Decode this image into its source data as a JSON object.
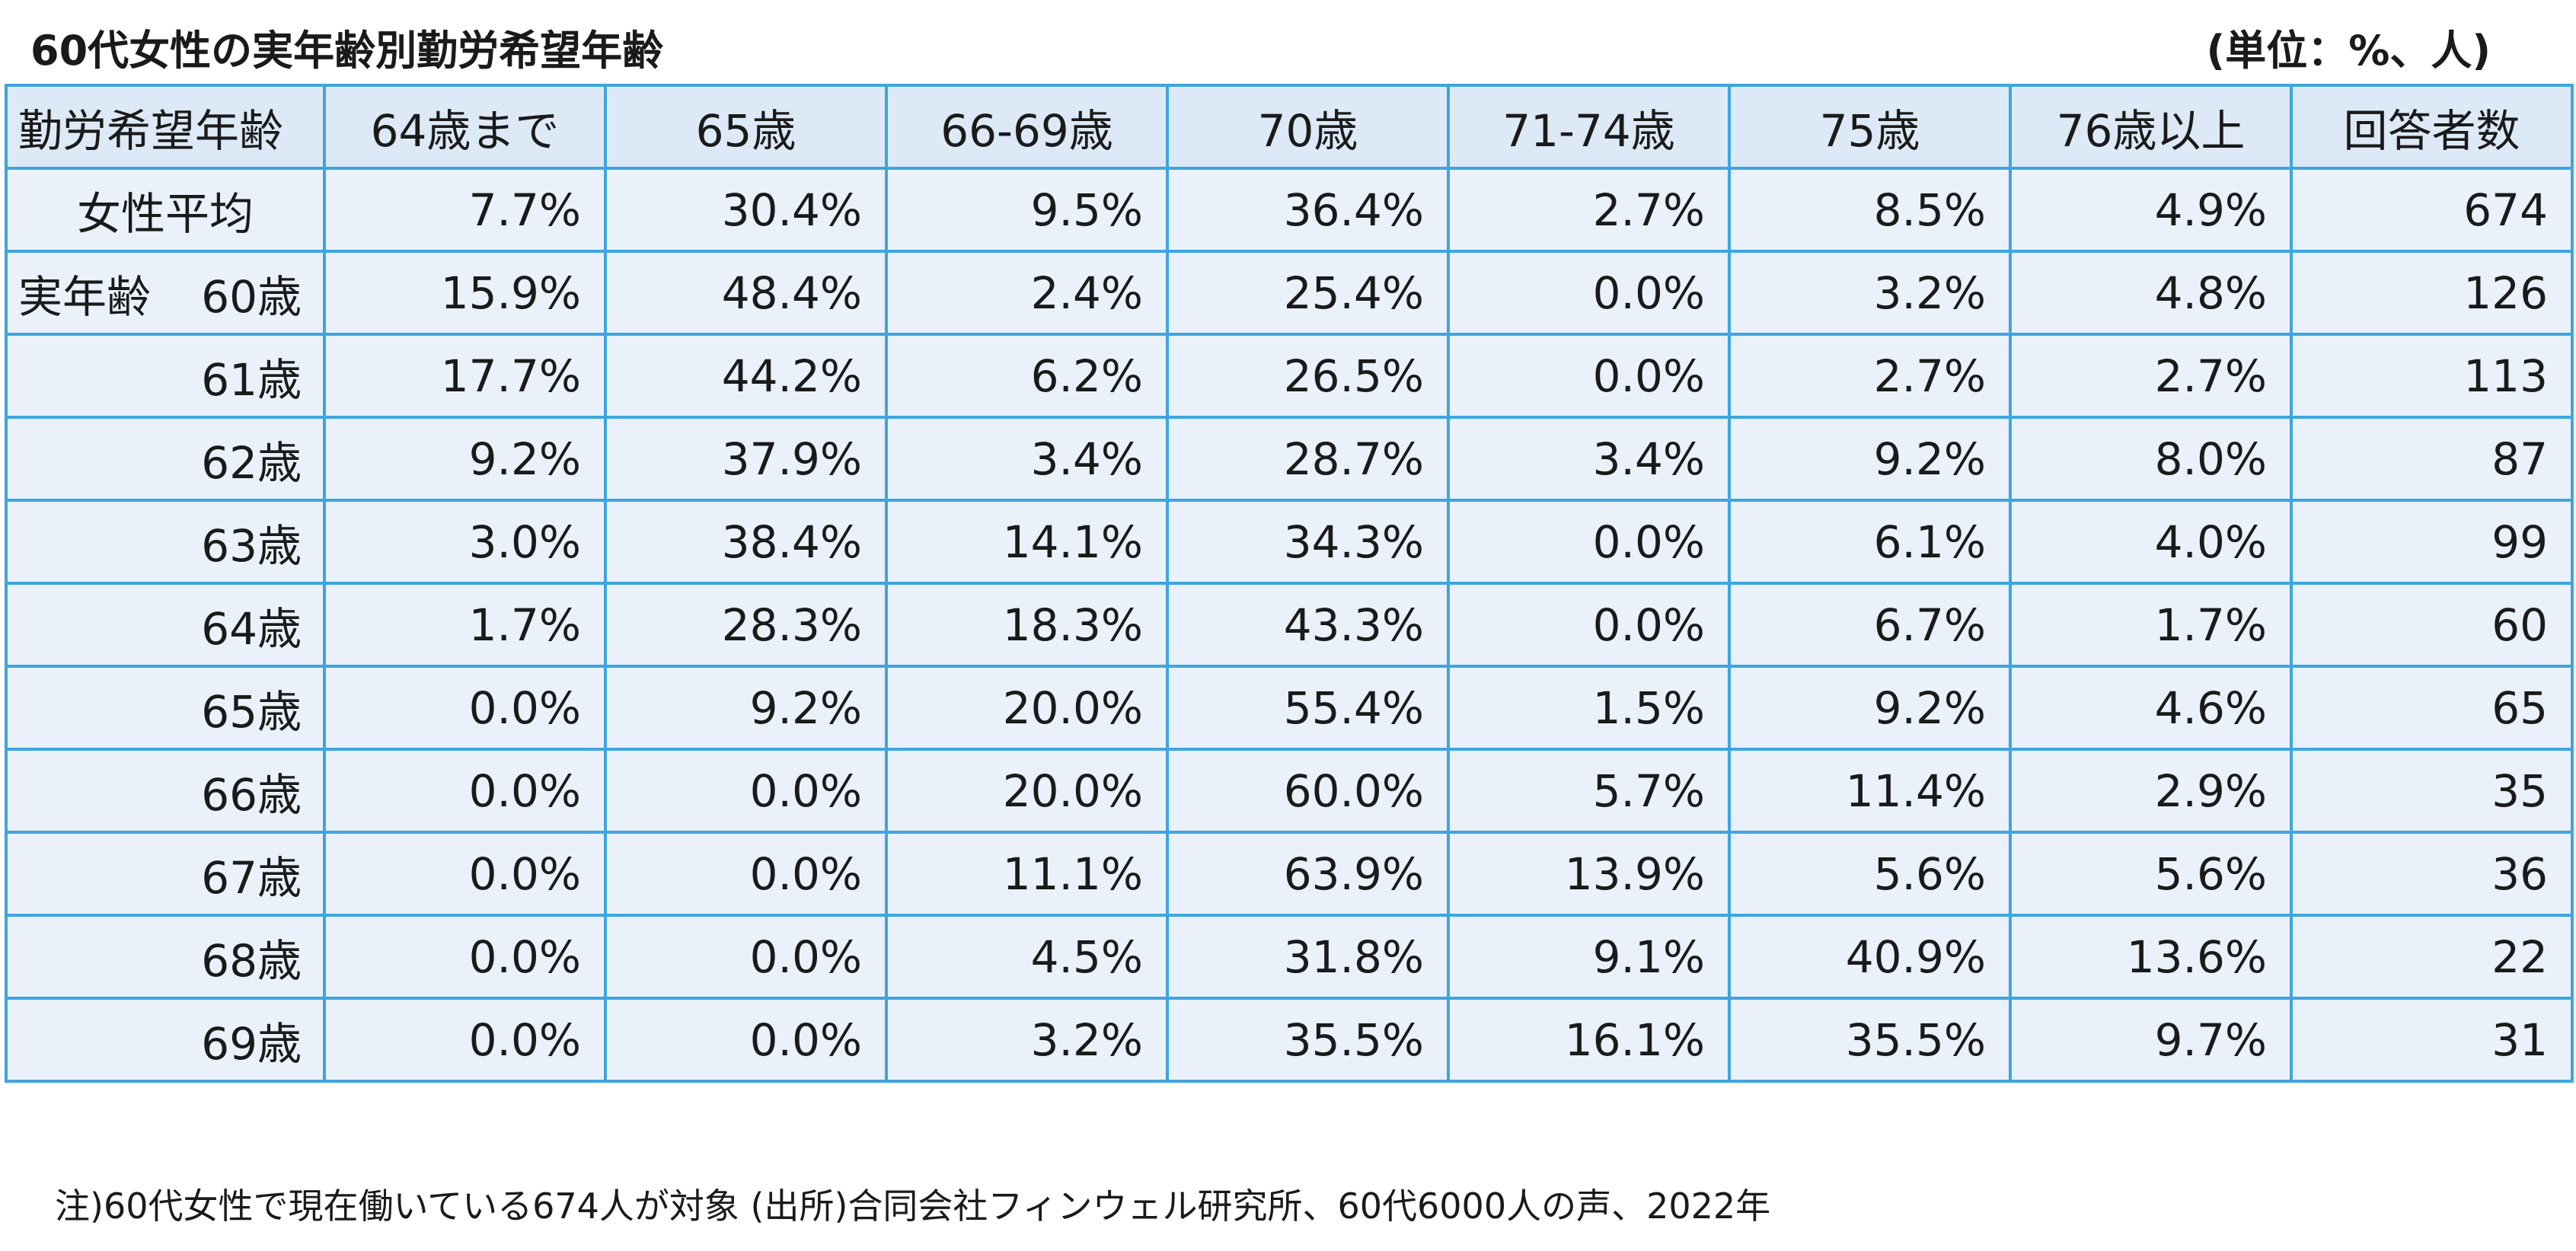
{
  "header": {
    "title": "60代女性の実年齢別勤労希望年齢",
    "unit": "(単位：%、人)"
  },
  "chart_data": {
    "type": "table",
    "title": "60代女性の実年齢別勤労希望年齢",
    "columns": [
      "勤労希望年齢",
      "64歳まで",
      "65歳",
      "66‑69歳",
      "70歳",
      "71‑74歳",
      "75歳",
      "76歳以上",
      "回答者数"
    ],
    "row_group_label": "実年齢",
    "rows": [
      {
        "label": "女性平均",
        "values": [
          "7.7%",
          "30.4%",
          "9.5%",
          "36.4%",
          "2.7%",
          "8.5%",
          "4.9%",
          "674"
        ]
      },
      {
        "label": "60歳",
        "values": [
          "15.9%",
          "48.4%",
          "2.4%",
          "25.4%",
          "0.0%",
          "3.2%",
          "4.8%",
          "126"
        ]
      },
      {
        "label": "61歳",
        "values": [
          "17.7%",
          "44.2%",
          "6.2%",
          "26.5%",
          "0.0%",
          "2.7%",
          "2.7%",
          "113"
        ]
      },
      {
        "label": "62歳",
        "values": [
          "9.2%",
          "37.9%",
          "3.4%",
          "28.7%",
          "3.4%",
          "9.2%",
          "8.0%",
          "87"
        ]
      },
      {
        "label": "63歳",
        "values": [
          "3.0%",
          "38.4%",
          "14.1%",
          "34.3%",
          "0.0%",
          "6.1%",
          "4.0%",
          "99"
        ]
      },
      {
        "label": "64歳",
        "values": [
          "1.7%",
          "28.3%",
          "18.3%",
          "43.3%",
          "0.0%",
          "6.7%",
          "1.7%",
          "60"
        ]
      },
      {
        "label": "65歳",
        "values": [
          "0.0%",
          "9.2%",
          "20.0%",
          "55.4%",
          "1.5%",
          "9.2%",
          "4.6%",
          "65"
        ]
      },
      {
        "label": "66歳",
        "values": [
          "0.0%",
          "0.0%",
          "20.0%",
          "60.0%",
          "5.7%",
          "11.4%",
          "2.9%",
          "35"
        ]
      },
      {
        "label": "67歳",
        "values": [
          "0.0%",
          "0.0%",
          "11.1%",
          "63.9%",
          "13.9%",
          "5.6%",
          "5.6%",
          "36"
        ]
      },
      {
        "label": "68歳",
        "values": [
          "0.0%",
          "0.0%",
          "4.5%",
          "31.8%",
          "9.1%",
          "40.9%",
          "13.6%",
          "22"
        ]
      },
      {
        "label": "69歳",
        "values": [
          "0.0%",
          "0.0%",
          "3.2%",
          "35.5%",
          "16.1%",
          "35.5%",
          "9.7%",
          "31"
        ]
      }
    ]
  },
  "footer": {
    "note": "注)60代女性で現在働いている674人が対象 (出所)合同会社フィンウェル研究所、60代6000人の声、2022年"
  },
  "colors": {
    "border": "#3da5e0",
    "header_bg": "#dde9f6",
    "row_bg": "#eaf1fa"
  }
}
